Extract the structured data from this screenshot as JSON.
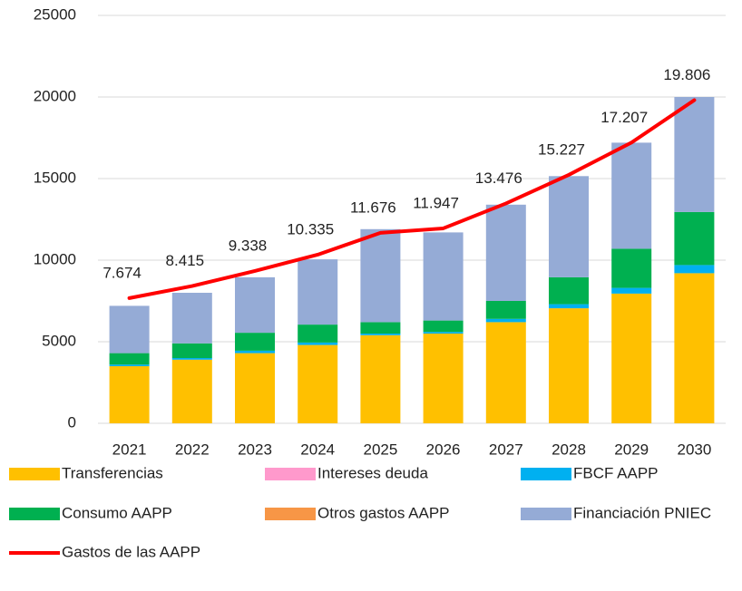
{
  "chart_data": {
    "type": "bar",
    "categories": [
      "2021",
      "2022",
      "2023",
      "2024",
      "2025",
      "2026",
      "2027",
      "2028",
      "2029",
      "2030"
    ],
    "ylim": [
      0,
      25000
    ],
    "yticks": [
      0,
      5000,
      10000,
      15000,
      20000,
      25000
    ],
    "grid": true,
    "stacked": true,
    "legend": "bottom",
    "series": [
      {
        "name": "Transferencias",
        "type": "bar",
        "color": "#ffc000",
        "values": [
          3500,
          3900,
          4300,
          4800,
          5400,
          5500,
          6200,
          7050,
          7950,
          9200
        ]
      },
      {
        "name": "Intereses deuda",
        "type": "bar",
        "color": "#ff99cc",
        "values": [
          0,
          0,
          0,
          0,
          0,
          0,
          0,
          0,
          0,
          0
        ]
      },
      {
        "name": "FBCF AAPP",
        "type": "bar",
        "color": "#00b0f0",
        "values": [
          100,
          100,
          150,
          150,
          100,
          100,
          200,
          250,
          350,
          500
        ]
      },
      {
        "name": "Consumo AAPP",
        "type": "bar",
        "color": "#00b050",
        "values": [
          700,
          900,
          1100,
          1100,
          700,
          700,
          1100,
          1650,
          2400,
          3250
        ]
      },
      {
        "name": "Otros gastos AAPP",
        "type": "bar",
        "color": "#f79646",
        "values": [
          0,
          0,
          0,
          0,
          0,
          0,
          0,
          0,
          0,
          0
        ]
      },
      {
        "name": "Financiación PNIEC",
        "type": "bar",
        "color": "#95abd6",
        "values": [
          2900,
          3100,
          3400,
          4000,
          5700,
          5400,
          5900,
          6200,
          6500,
          7050
        ]
      },
      {
        "name": "Gastos de las AAPP",
        "type": "line",
        "color": "#ff0000",
        "values": [
          7674,
          8415,
          9338,
          10335,
          11676,
          11947,
          13476,
          15227,
          17207,
          19806
        ],
        "value_labels": [
          "7.674",
          "8.415",
          "9.338",
          "10.335",
          "11.676",
          "11.947",
          "13.476",
          "15.227",
          "17.207",
          "19.806"
        ]
      }
    ]
  }
}
